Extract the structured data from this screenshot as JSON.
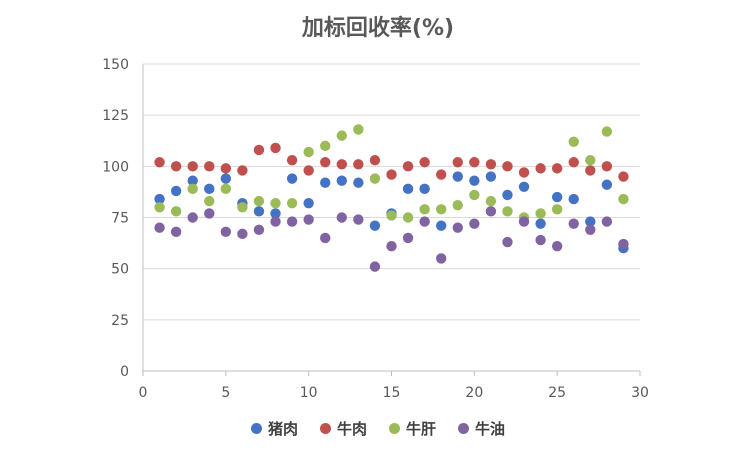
{
  "chart_data": {
    "type": "scatter",
    "title": "加标回收率(%)",
    "xlabel": "",
    "ylabel": "",
    "xlim": [
      0,
      30
    ],
    "ylim": [
      0,
      150
    ],
    "xticks": [
      0,
      5,
      10,
      15,
      20,
      25,
      30
    ],
    "yticks": [
      0,
      25,
      50,
      75,
      100,
      125,
      150
    ],
    "grid": "horizontal",
    "legend": "bottom",
    "series": [
      {
        "name": "猪肉",
        "color": "#4472C4",
        "x": [
          1,
          2,
          3,
          4,
          5,
          6,
          7,
          8,
          9,
          10,
          11,
          12,
          13,
          14,
          15,
          16,
          17,
          18,
          19,
          20,
          21,
          22,
          23,
          24,
          25,
          26,
          27,
          28,
          29
        ],
        "y": [
          84,
          88,
          93,
          89,
          94,
          82,
          78,
          77,
          94,
          82,
          92,
          93,
          92,
          71,
          77,
          89,
          89,
          71,
          95,
          93,
          95,
          86,
          90,
          72,
          85,
          84,
          73,
          91,
          60
        ]
      },
      {
        "name": "牛肉",
        "color": "#C0504D",
        "x": [
          1,
          2,
          3,
          4,
          5,
          6,
          7,
          8,
          9,
          10,
          11,
          12,
          13,
          14,
          15,
          16,
          17,
          18,
          19,
          20,
          21,
          22,
          23,
          24,
          25,
          26,
          27,
          28,
          29
        ],
        "y": [
          102,
          100,
          100,
          100,
          99,
          98,
          108,
          109,
          103,
          98,
          102,
          101,
          101,
          103,
          96,
          100,
          102,
          96,
          102,
          102,
          101,
          100,
          97,
          99,
          99,
          102,
          98,
          100,
          95
        ]
      },
      {
        "name": "牛肝",
        "color": "#9BBB59",
        "x": [
          1,
          2,
          3,
          4,
          5,
          6,
          7,
          8,
          9,
          10,
          11,
          12,
          13,
          14,
          15,
          16,
          17,
          18,
          19,
          20,
          21,
          22,
          23,
          24,
          25,
          26,
          27,
          28,
          29
        ],
        "y": [
          80,
          78,
          89,
          83,
          89,
          80,
          83,
          82,
          82,
          107,
          110,
          115,
          118,
          94,
          76,
          75,
          79,
          79,
          81,
          86,
          83,
          78,
          75,
          77,
          79,
          112,
          103,
          117,
          84
        ]
      },
      {
        "name": "牛油",
        "color": "#8064A2",
        "x": [
          1,
          2,
          3,
          4,
          5,
          6,
          7,
          8,
          9,
          10,
          11,
          12,
          13,
          14,
          15,
          16,
          17,
          18,
          19,
          20,
          21,
          22,
          23,
          24,
          25,
          26,
          27,
          28,
          29
        ],
        "y": [
          70,
          68,
          75,
          77,
          68,
          67,
          69,
          73,
          73,
          74,
          65,
          75,
          74,
          51,
          61,
          65,
          73,
          55,
          70,
          72,
          78,
          63,
          73,
          64,
          61,
          72,
          69,
          73,
          62
        ]
      }
    ]
  }
}
